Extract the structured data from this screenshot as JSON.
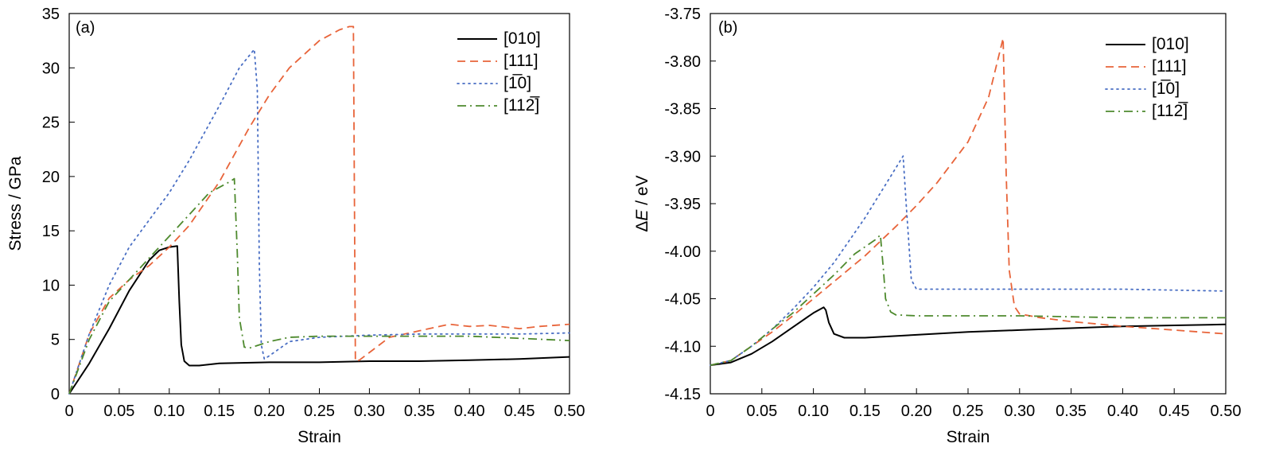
{
  "chart_data": [
    {
      "type": "line",
      "panel": "(a)",
      "xlabel": "Strain",
      "ylabel": "Stress / GPa",
      "xlim": [
        0,
        0.5
      ],
      "ylim": [
        0,
        35
      ],
      "xticks": [
        0,
        0.05,
        0.1,
        0.15,
        0.2,
        0.25,
        0.3,
        0.35,
        0.4,
        0.45,
        0.5
      ],
      "xtick_labels": [
        "0",
        "0.05",
        "0.10",
        "0.15",
        "0.20",
        "0.25",
        "0.30",
        "0.35",
        "0.40",
        "0.45",
        "0.50"
      ],
      "yticks": [
        0,
        5,
        10,
        15,
        20,
        25,
        30,
        35
      ],
      "ytick_labels": [
        "0",
        "5",
        "10",
        "15",
        "20",
        "25",
        "30",
        "35"
      ],
      "grid": false,
      "legend": "top-right",
      "series": [
        {
          "name": "[010]",
          "color": "#000000",
          "dash": "solid",
          "x": [
            0,
            0.02,
            0.04,
            0.06,
            0.08,
            0.09,
            0.1,
            0.108,
            0.11,
            0.112,
            0.115,
            0.12,
            0.13,
            0.15,
            0.2,
            0.25,
            0.3,
            0.35,
            0.4,
            0.45,
            0.5
          ],
          "y": [
            0,
            2.8,
            6.0,
            9.5,
            12.3,
            13.2,
            13.5,
            13.6,
            8.5,
            4.5,
            3.0,
            2.6,
            2.6,
            2.8,
            2.9,
            2.9,
            3.0,
            3.0,
            3.1,
            3.2,
            3.4
          ]
        },
        {
          "name": "[111]",
          "color": "#e8643a",
          "dash": "dashed",
          "x": [
            0,
            0.02,
            0.04,
            0.06,
            0.08,
            0.1,
            0.12,
            0.15,
            0.18,
            0.2,
            0.22,
            0.25,
            0.27,
            0.28,
            0.284,
            0.286,
            0.29,
            0.3,
            0.32,
            0.35,
            0.38,
            0.4,
            0.42,
            0.45,
            0.47,
            0.5
          ],
          "y": [
            0,
            5.5,
            8.8,
            10.5,
            11.8,
            13.5,
            15.5,
            19.5,
            24.5,
            27.5,
            30.0,
            32.5,
            33.5,
            33.8,
            33.8,
            3.0,
            3.1,
            3.8,
            5.2,
            5.8,
            6.4,
            6.2,
            6.3,
            6.0,
            6.2,
            6.4
          ]
        },
        {
          "name": "[1̅0]",
          "color": "#4a6fc4",
          "dash": "dotted",
          "x": [
            0,
            0.02,
            0.04,
            0.06,
            0.08,
            0.1,
            0.12,
            0.15,
            0.17,
            0.185,
            0.188,
            0.19,
            0.192,
            0.195,
            0.2,
            0.22,
            0.25,
            0.3,
            0.35,
            0.4,
            0.45,
            0.5
          ],
          "y": [
            0,
            5.5,
            10.0,
            13.5,
            16.0,
            18.5,
            21.5,
            26.5,
            30.0,
            31.7,
            28.0,
            12.0,
            4.5,
            3.2,
            3.5,
            4.8,
            5.2,
            5.4,
            5.5,
            5.5,
            5.5,
            5.6
          ]
        },
        {
          "name": "[112̅]",
          "color": "#4e8a2e",
          "dash": "dashdot",
          "x": [
            0,
            0.02,
            0.04,
            0.06,
            0.08,
            0.1,
            0.12,
            0.14,
            0.16,
            0.165,
            0.168,
            0.17,
            0.175,
            0.18,
            0.2,
            0.22,
            0.25,
            0.3,
            0.35,
            0.4,
            0.45,
            0.5
          ],
          "y": [
            0,
            5.0,
            8.5,
            10.5,
            12.5,
            14.5,
            16.5,
            18.5,
            19.5,
            19.8,
            13.0,
            7.0,
            4.3,
            4.2,
            4.8,
            5.2,
            5.3,
            5.3,
            5.3,
            5.3,
            5.1,
            4.9
          ]
        }
      ]
    },
    {
      "type": "line",
      "panel": "(b)",
      "xlabel": "Strain",
      "ylabel_prefix": "Δ",
      "ylabel_italic": "E",
      "ylabel_suffix": " / eV",
      "xlim": [
        0,
        0.5
      ],
      "ylim": [
        -4.15,
        -3.75
      ],
      "xticks": [
        0,
        0.05,
        0.1,
        0.15,
        0.2,
        0.25,
        0.3,
        0.35,
        0.4,
        0.45,
        0.5
      ],
      "xtick_labels": [
        "0",
        "0.05",
        "0.10",
        "0.15",
        "0.20",
        "0.25",
        "0.30",
        "0.35",
        "0.40",
        "0.45",
        "0.50"
      ],
      "yticks": [
        -4.15,
        -4.1,
        -4.05,
        -4.0,
        -3.95,
        -3.9,
        -3.85,
        -3.8,
        -3.75
      ],
      "ytick_labels": [
        "-4.15",
        "-4.10",
        "-4.05",
        "-4.00",
        "-3.95",
        "-3.90",
        "-3.85",
        "-3.80",
        "-3.75"
      ],
      "grid": false,
      "legend": "top-right",
      "series": [
        {
          "name": "[010]",
          "color": "#000000",
          "dash": "solid",
          "x": [
            0,
            0.02,
            0.04,
            0.06,
            0.08,
            0.1,
            0.11,
            0.112,
            0.115,
            0.12,
            0.13,
            0.15,
            0.2,
            0.25,
            0.3,
            0.35,
            0.4,
            0.45,
            0.5
          ],
          "y": [
            -4.12,
            -4.117,
            -4.108,
            -4.095,
            -4.08,
            -4.065,
            -4.059,
            -4.062,
            -4.075,
            -4.087,
            -4.091,
            -4.091,
            -4.088,
            -4.085,
            -4.083,
            -4.081,
            -4.079,
            -4.078,
            -4.077
          ]
        },
        {
          "name": "[111]",
          "color": "#e8643a",
          "dash": "dashed",
          "x": [
            0,
            0.02,
            0.04,
            0.06,
            0.08,
            0.1,
            0.12,
            0.15,
            0.18,
            0.2,
            0.22,
            0.25,
            0.27,
            0.284,
            0.287,
            0.29,
            0.295,
            0.3,
            0.32,
            0.35,
            0.4,
            0.45,
            0.5
          ],
          "y": [
            -4.12,
            -4.115,
            -4.1,
            -4.085,
            -4.068,
            -4.05,
            -4.032,
            -4.005,
            -3.974,
            -3.952,
            -3.928,
            -3.885,
            -3.838,
            -3.776,
            -3.92,
            -4.02,
            -4.058,
            -4.066,
            -4.07,
            -4.074,
            -4.079,
            -4.083,
            -4.087
          ]
        },
        {
          "name": "[1̅0]",
          "color": "#4a6fc4",
          "dash": "dotted",
          "x": [
            0,
            0.02,
            0.04,
            0.06,
            0.08,
            0.1,
            0.12,
            0.15,
            0.17,
            0.187,
            0.19,
            0.195,
            0.2,
            0.25,
            0.3,
            0.35,
            0.4,
            0.45,
            0.5
          ],
          "y": [
            -4.12,
            -4.115,
            -4.1,
            -4.082,
            -4.061,
            -4.038,
            -4.012,
            -3.965,
            -3.93,
            -3.9,
            -3.95,
            -4.03,
            -4.04,
            -4.04,
            -4.04,
            -4.04,
            -4.04,
            -4.041,
            -4.042
          ]
        },
        {
          "name": "[112̅]",
          "color": "#4e8a2e",
          "dash": "dashdot",
          "x": [
            0,
            0.02,
            0.04,
            0.06,
            0.08,
            0.1,
            0.12,
            0.14,
            0.16,
            0.165,
            0.168,
            0.17,
            0.175,
            0.18,
            0.2,
            0.25,
            0.3,
            0.35,
            0.4,
            0.45,
            0.5
          ],
          "y": [
            -4.12,
            -4.115,
            -4.1,
            -4.082,
            -4.065,
            -4.045,
            -4.025,
            -4.003,
            -3.988,
            -3.983,
            -4.02,
            -4.05,
            -4.064,
            -4.067,
            -4.068,
            -4.068,
            -4.068,
            -4.069,
            -4.07,
            -4.07,
            -4.07
          ]
        }
      ]
    }
  ]
}
